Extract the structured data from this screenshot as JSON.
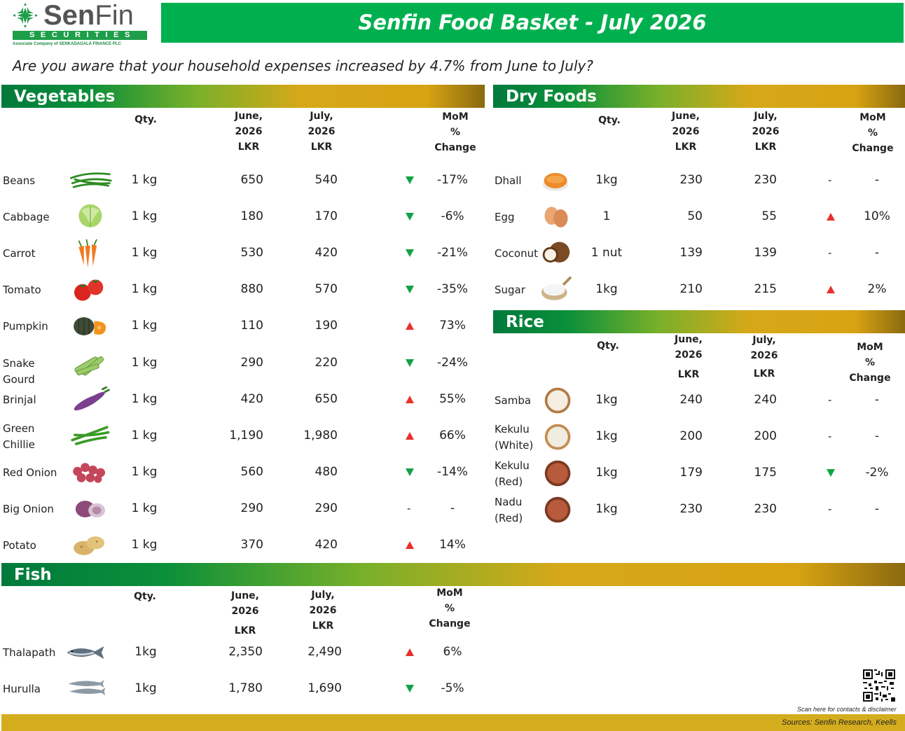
{
  "logo": {
    "name_a": "Sen",
    "name_b": "Fin",
    "securities": "SECURITIES",
    "associate": "Associate Company of  SENKADAGALA FINANCE PLC"
  },
  "title": "Senfin Food Basket - July 2026",
  "question": "Are you aware that your household expenses increased by 4.7% from June to July?",
  "headers": {
    "qty": "Qty.",
    "june_l1": "June,",
    "june_l2": "2026",
    "june_l3": "LKR",
    "july_l1": "July,",
    "july_l2": "2026",
    "july_l3": "LKR",
    "mom_l1": "MoM",
    "mom_l2": "%",
    "mom_l3": "Change"
  },
  "sections": {
    "vegetables": "Vegetables",
    "dry_foods": "Dry Foods",
    "rice": "Rice",
    "fish": "Fish"
  },
  "vegetables": [
    {
      "name": "Beans",
      "icon": "beans-icon",
      "qty": "1 kg",
      "june": "650",
      "july": "540",
      "trend": "down",
      "change": "-17%"
    },
    {
      "name": "Cabbage",
      "icon": "cabbage-icon",
      "qty": "1 kg",
      "june": "180",
      "july": "170",
      "trend": "down",
      "change": "-6%"
    },
    {
      "name": "Carrot",
      "icon": "carrot-icon",
      "qty": "1 kg",
      "june": "530",
      "july": "420",
      "trend": "down",
      "change": "-21%"
    },
    {
      "name": "Tomato",
      "icon": "tomato-icon",
      "qty": "1 kg",
      "june": "880",
      "july": "570",
      "trend": "down",
      "change": "-35%"
    },
    {
      "name": "Pumpkin",
      "icon": "pumpkin-icon",
      "qty": "1 kg",
      "june": "110",
      "july": "190",
      "trend": "up",
      "change": "73%"
    },
    {
      "name": "Snake Gourd",
      "icon": "snake-gourd-icon",
      "qty": "1 kg",
      "june": "290",
      "july": "220",
      "trend": "down",
      "change": "-24%"
    },
    {
      "name": "Brinjal",
      "icon": "brinjal-icon",
      "qty": "1 kg",
      "june": "420",
      "july": "650",
      "trend": "up",
      "change": "55%"
    },
    {
      "name": "Green Chillie",
      "icon": "green-chillie-icon",
      "qty": "1 kg",
      "june": "1,190",
      "july": "1,980",
      "trend": "up",
      "change": "66%"
    },
    {
      "name": "Red Onion",
      "icon": "red-onion-icon",
      "qty": "1 kg",
      "june": "560",
      "july": "480",
      "trend": "down",
      "change": "-14%"
    },
    {
      "name": "Big Onion",
      "icon": "big-onion-icon",
      "qty": "1 kg",
      "june": "290",
      "july": "290",
      "trend": "flat",
      "change": "-"
    },
    {
      "name": "Potato",
      "icon": "potato-icon",
      "qty": "1 kg",
      "june": "370",
      "july": "420",
      "trend": "up",
      "change": "14%"
    }
  ],
  "dry_foods": [
    {
      "name": "Dhall",
      "icon": "dhall-icon",
      "qty": "1kg",
      "june": "230",
      "july": "230",
      "trend": "flat",
      "change": "-"
    },
    {
      "name": "Egg",
      "icon": "egg-icon",
      "qty": "1",
      "june": "50",
      "july": "55",
      "trend": "up",
      "change": "10%"
    },
    {
      "name": "Coconut",
      "icon": "coconut-icon",
      "qty": "1 nut",
      "june": "139",
      "july": "139",
      "trend": "flat",
      "change": "-"
    },
    {
      "name": "Sugar",
      "icon": "sugar-icon",
      "qty": "1kg",
      "june": "210",
      "july": "215",
      "trend": "up",
      "change": "2%"
    }
  ],
  "rice": [
    {
      "name": "Samba",
      "icon": "samba-rice-icon",
      "qty": "1kg",
      "june": "240",
      "july": "240",
      "trend": "flat",
      "change": "-"
    },
    {
      "name": "Kekulu (White)",
      "icon": "white-rice-icon",
      "qty": "1kg",
      "june": "200",
      "july": "200",
      "trend": "flat",
      "change": "-"
    },
    {
      "name": "Kekulu (Red)",
      "icon": "red-rice-icon",
      "qty": "1kg",
      "june": "179",
      "july": "175",
      "trend": "down",
      "change": "-2%"
    },
    {
      "name": "Nadu (Red)",
      "icon": "red-rice-icon",
      "qty": "1kg",
      "june": "230",
      "july": "230",
      "trend": "flat",
      "change": "-"
    }
  ],
  "fish": [
    {
      "name": "Thalapath",
      "icon": "fish-icon",
      "qty": "1kg",
      "june": "2,350",
      "july": "2,490",
      "trend": "up",
      "change": "6%"
    },
    {
      "name": "Hurulla",
      "icon": "small-fish-icon",
      "qty": "1kg",
      "june": "1,780",
      "july": "1,690",
      "trend": "down",
      "change": "-5%"
    }
  ],
  "footer": {
    "scan": "Scan here for contacts  & disclaimer",
    "sources": "Sources: Senfin Research, Keells"
  },
  "colors": {
    "banner": "#00b04f",
    "up": "#e8312b",
    "down": "#12a245",
    "footer": "#d4ad1e"
  }
}
